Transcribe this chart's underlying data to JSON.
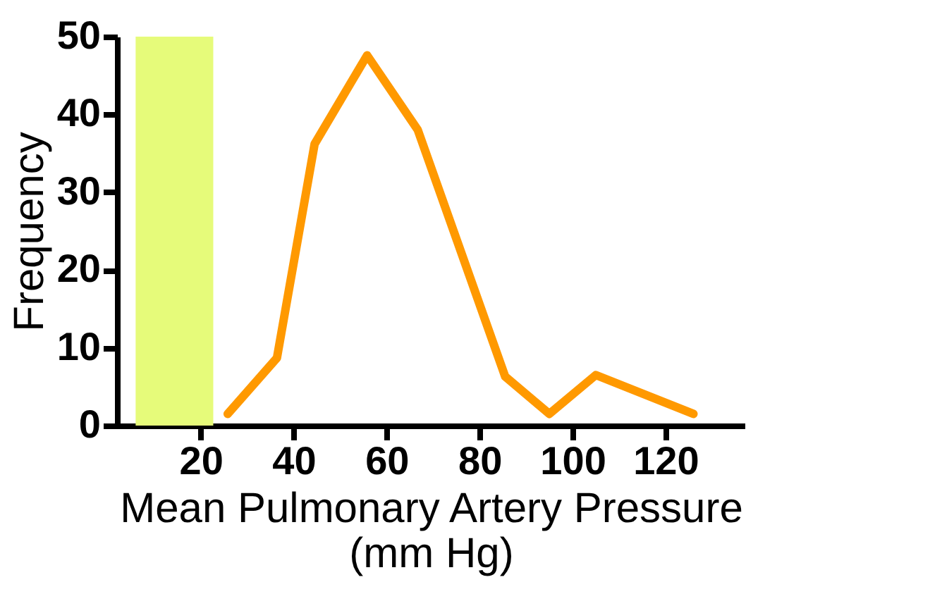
{
  "chart_data": {
    "type": "line",
    "xlabel": "Mean Pulmonary Artery Pressure\n(mm Hg)",
    "ylabel": "Frequency",
    "x": [
      25.8,
      36.4,
      44.5,
      55.8,
      66.7,
      85.5,
      95,
      105,
      126
    ],
    "series": [
      {
        "color": "#ff9900",
        "values": [
          1.5,
          8.7,
          36.2,
          47.6,
          38,
          6.3,
          1.5,
          6.5,
          1.5
        ]
      }
    ],
    "xlim": [
      2,
      137
    ],
    "xticks": [
      20,
      40,
      60,
      80,
      100,
      120
    ],
    "ylim": [
      0,
      50
    ],
    "yticks": [
      0,
      10,
      20,
      30,
      40,
      50
    ],
    "bands": [
      {
        "axis": "x",
        "from": 6,
        "to": 22.7,
        "color": "#e6fb7a"
      }
    ],
    "grid": false,
    "marker": "none",
    "line_style": "solid"
  }
}
